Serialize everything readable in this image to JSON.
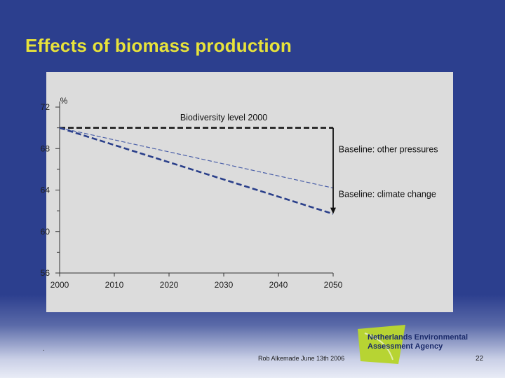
{
  "slide": {
    "title": "Effects of biomass production",
    "footer": "Rob Alkemade June 13th 2006",
    "page_number": "22",
    "dot": "."
  },
  "logo": {
    "line1": "Netherlands Environmental",
    "line2": "Assessment Agency",
    "colors": {
      "leaf": "#b7d433",
      "text": "#1a2a6a"
    }
  },
  "chart_data": {
    "type": "line",
    "ylabel": "%",
    "xlim": [
      2000,
      2050
    ],
    "ylim": [
      56,
      72
    ],
    "x_ticks": [
      2000,
      2010,
      2020,
      2030,
      2040,
      2050
    ],
    "y_ticks": [
      72,
      68,
      64,
      60,
      56
    ],
    "grid": false,
    "series": [
      {
        "name": "Biodiversity level 2000",
        "x": [
          2000,
          2050
        ],
        "y": [
          70,
          70
        ],
        "style": "dashed-thick",
        "color": "#111111"
      },
      {
        "name": "Baseline: other pressures",
        "x": [
          2000,
          2050
        ],
        "y": [
          70,
          64.2
        ],
        "style": "dashed-thin",
        "color": "#4a5fa8"
      },
      {
        "name": "Baseline: climate change",
        "x": [
          2000,
          2050
        ],
        "y": [
          70,
          61.7
        ],
        "style": "dashed-thick",
        "color": "#2a3f8a"
      }
    ],
    "annotations": [
      {
        "text": "Biodiversity level 2000",
        "x": 2030,
        "y": 71.0
      },
      {
        "text": "Baseline: other pressures",
        "x": 2051,
        "y": 67.9
      },
      {
        "text": "Baseline: climate change",
        "x": 2051,
        "y": 63.6
      }
    ],
    "arrow": {
      "x": 2050,
      "from_y": 70,
      "to_y": 61.7
    }
  }
}
